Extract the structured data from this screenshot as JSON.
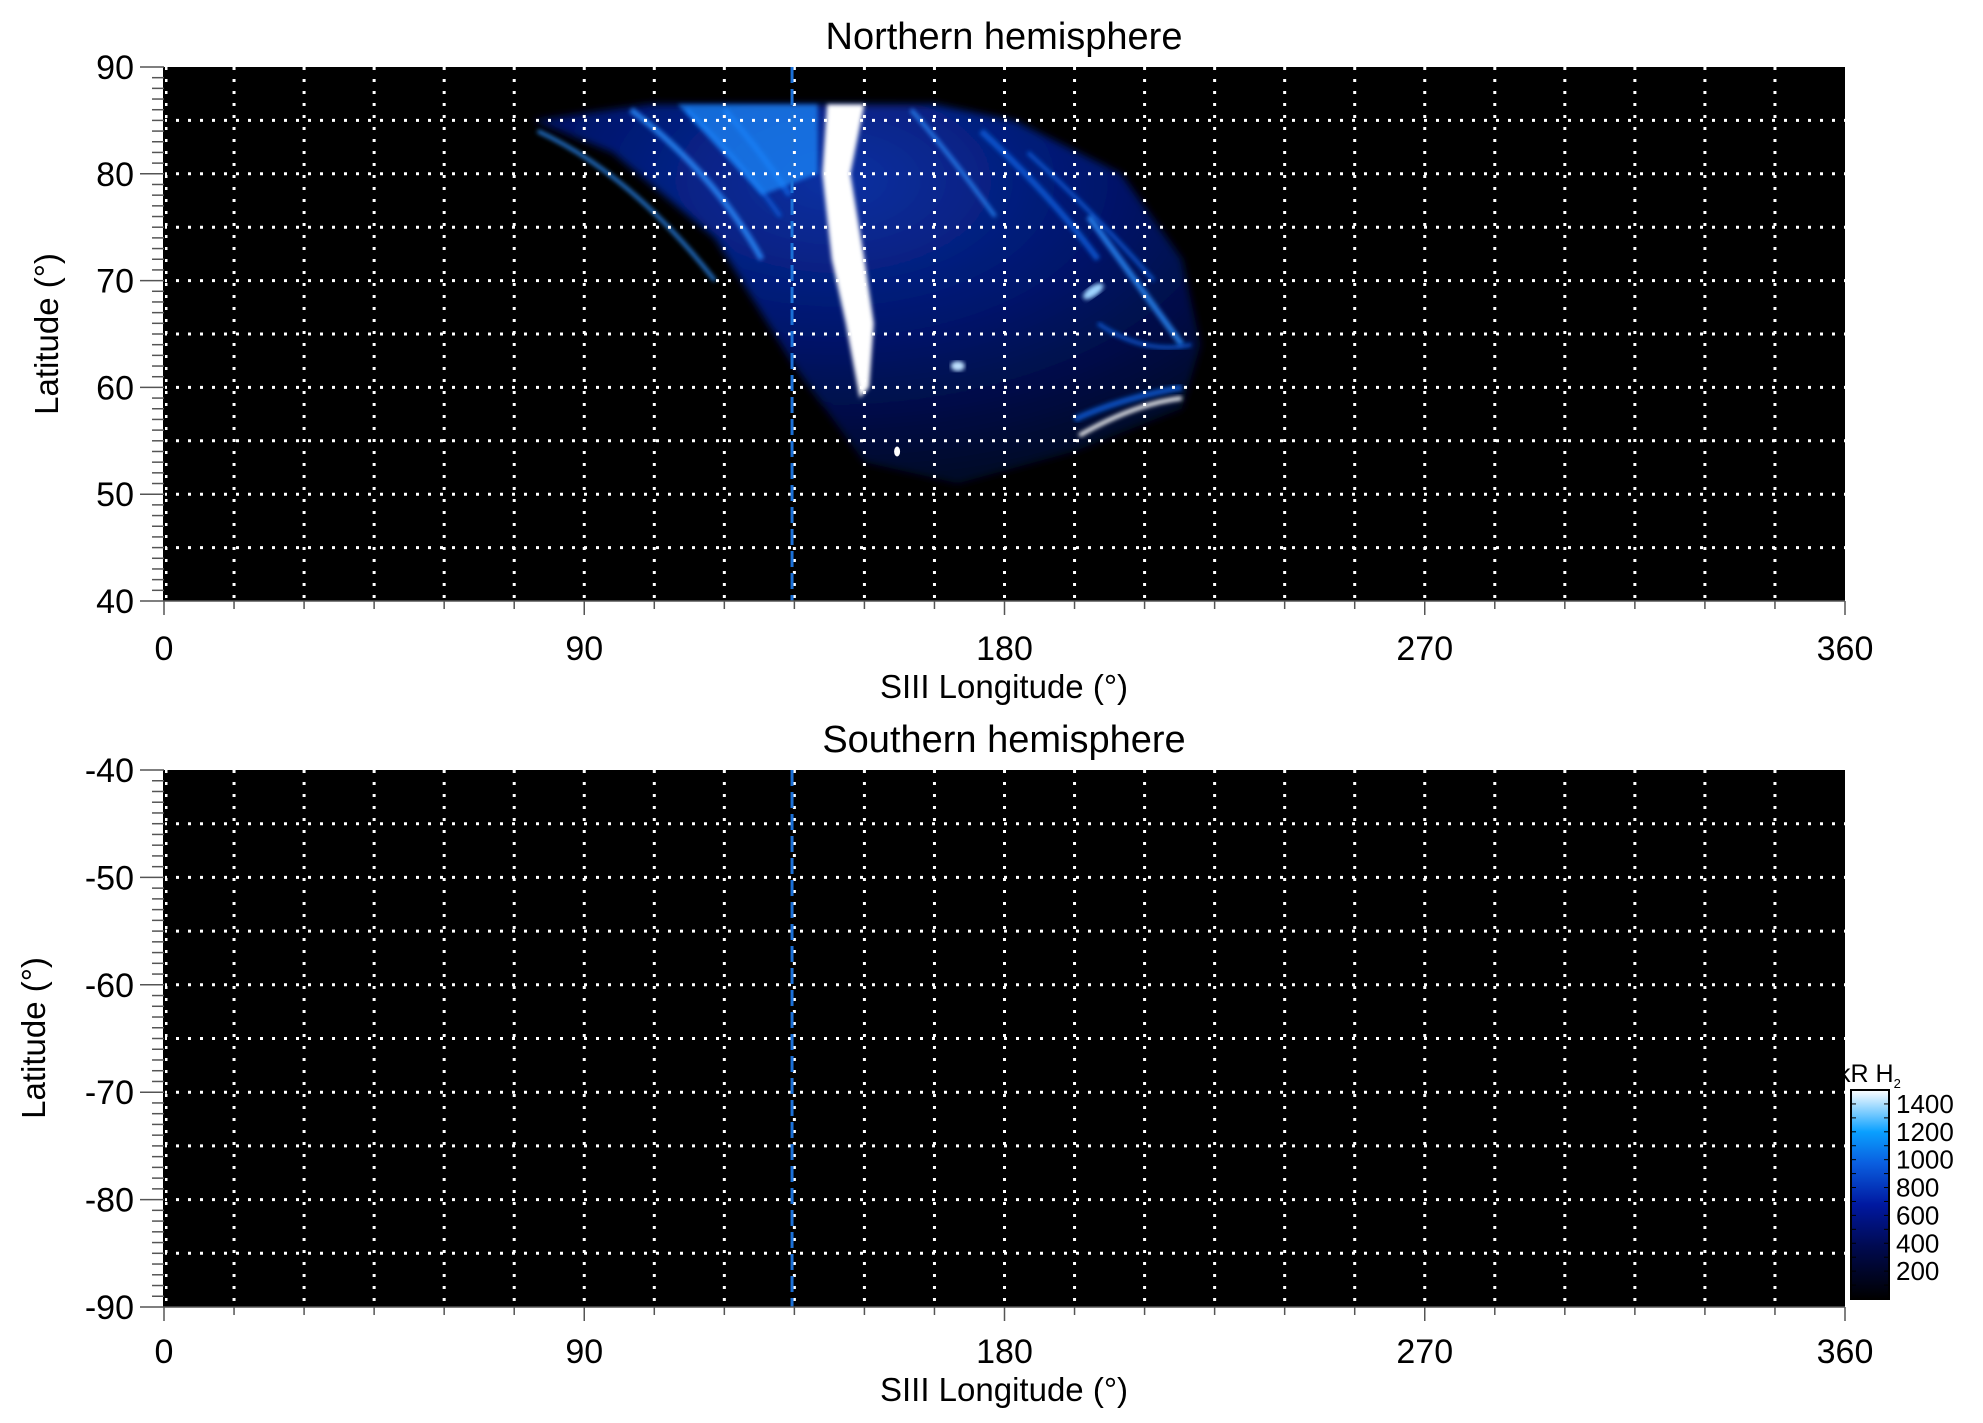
{
  "chart_data": [
    {
      "type": "heatmap",
      "title": "Northern hemisphere",
      "xlabel": "SIII Longitude (°)",
      "ylabel": "Latitude (°)",
      "xlim": [
        0,
        360
      ],
      "ylim": [
        40,
        90
      ],
      "xticks": [
        "0",
        "90",
        "180",
        "270",
        "360"
      ],
      "yticks": [
        "40",
        "50",
        "60",
        "70",
        "80",
        "90"
      ],
      "grid": {
        "on": true,
        "style": "dotted",
        "color": "#ffffff",
        "x_step": 15,
        "y_step": 5
      },
      "reference_line": {
        "longitude": 134.5,
        "color": "#1a6fd6",
        "style": "dashed"
      },
      "emission_visible": true
    },
    {
      "type": "heatmap",
      "title": "Southern hemisphere",
      "xlabel": "SIII Longitude (°)",
      "ylabel": "Latitude (°)",
      "xlim": [
        0,
        360
      ],
      "ylim": [
        -90,
        -40
      ],
      "xticks": [
        "0",
        "90",
        "180",
        "270",
        "360"
      ],
      "yticks": [
        "-40",
        "-50",
        "-60",
        "-70",
        "-80",
        "-90"
      ],
      "grid": {
        "on": true,
        "style": "dotted",
        "color": "#ffffff",
        "x_step": 15,
        "y_step": 5
      },
      "reference_line": {
        "longitude": 134.5,
        "color": "#1a6fd6",
        "style": "dashed"
      },
      "emission_visible": false
    }
  ],
  "colorbar": {
    "label": "kR H",
    "label_subscript": "2",
    "range": [
      0,
      1500
    ],
    "ticks": [
      "200",
      "400",
      "600",
      "800",
      "1000",
      "1200",
      "1400"
    ],
    "colors": [
      "#000000",
      "#000a50",
      "#0018a0",
      "#0a5fe0",
      "#0aa0ff",
      "#ffffff"
    ]
  }
}
